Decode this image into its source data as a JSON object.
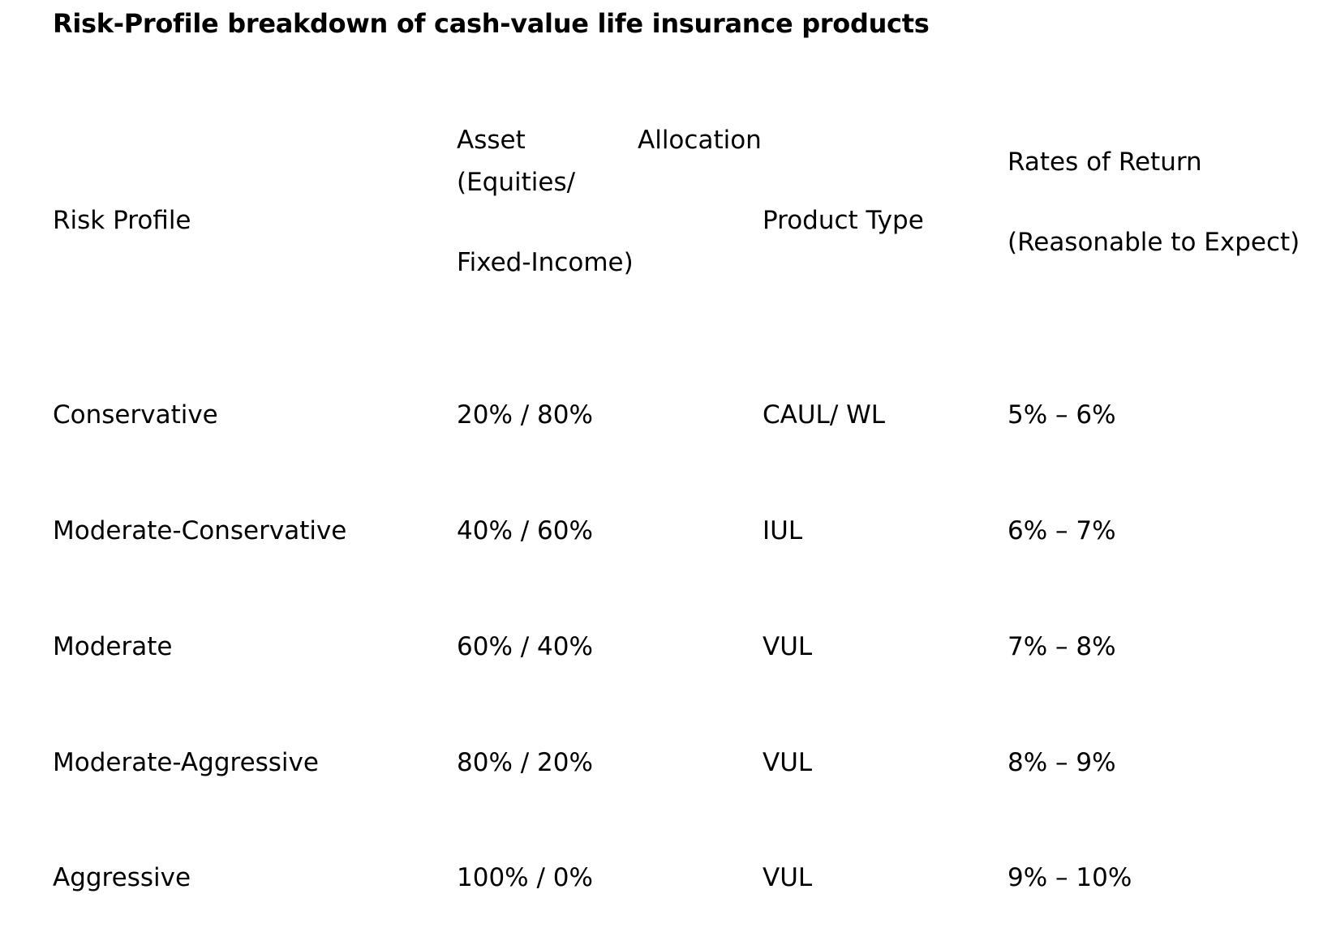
{
  "title": "Risk-Profile breakdown of cash-value life insurance products",
  "table": {
    "headers": {
      "risk_profile": "Risk Profile",
      "asset_line1_a": "Asset",
      "asset_line1_b": "Allocation",
      "asset_line2": "(Equities/",
      "asset_line3": "Fixed-Income)",
      "product_type": "Product Type",
      "rates_line1": "Rates of Return",
      "rates_line2": "(Reasonable to Expect)"
    },
    "rows": [
      {
        "risk_profile": "Conservative",
        "allocation": "20% / 80%",
        "product_type": "CAUL/ WL",
        "rates": "5% – 6%"
      },
      {
        "risk_profile": "Moderate-Conservative",
        "allocation": "40% / 60%",
        "product_type": "IUL",
        "rates": "6% – 7%"
      },
      {
        "risk_profile": "Moderate",
        "allocation": "60% / 40%",
        "product_type": "VUL",
        "rates": "7% – 8%"
      },
      {
        "risk_profile": "Moderate-Aggressive",
        "allocation": "80% / 20%",
        "product_type": "VUL",
        "rates": "8% – 9%"
      },
      {
        "risk_profile": "Aggressive",
        "allocation": "100% / 0%",
        "product_type": "VUL",
        "rates": "9% – 10%"
      }
    ]
  }
}
